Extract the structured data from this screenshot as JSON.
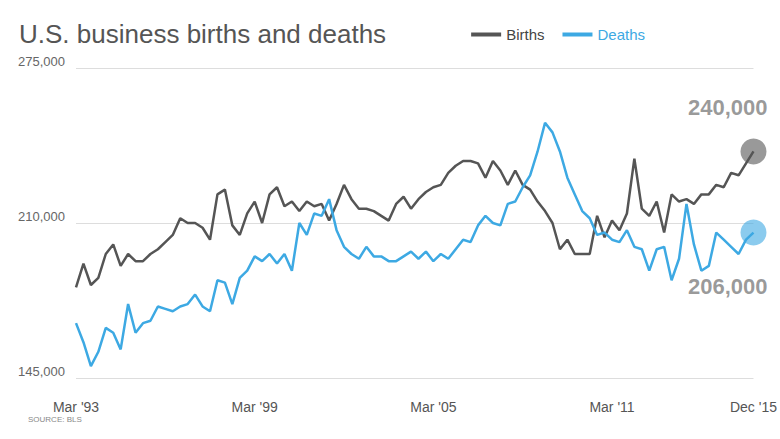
{
  "chart_data": {
    "type": "line",
    "title": "U.S. business births and deaths",
    "source": "SOURCE: BLS",
    "categories": [
      "Mar '93",
      null,
      null,
      null,
      null,
      null,
      null,
      null,
      null,
      null,
      null,
      null,
      null,
      null,
      null,
      null,
      null,
      null,
      null,
      null,
      null,
      null,
      null,
      null,
      "Mar '99",
      null,
      null,
      null,
      null,
      null,
      null,
      null,
      null,
      null,
      null,
      null,
      null,
      null,
      null,
      null,
      null,
      null,
      null,
      null,
      null,
      null,
      null,
      null,
      "Mar '05",
      null,
      null,
      null,
      null,
      null,
      null,
      null,
      null,
      null,
      null,
      null,
      null,
      null,
      null,
      null,
      null,
      null,
      null,
      null,
      null,
      null,
      null,
      null,
      "Mar '11",
      null,
      null,
      null,
      null,
      null,
      null,
      null,
      null,
      null,
      null,
      null,
      null,
      null,
      null,
      null,
      null,
      null,
      null,
      "Dec '15"
    ],
    "series": [
      {
        "name": "Births",
        "color": "#555555",
        "values": [
          183000,
          193000,
          184000,
          187000,
          197000,
          201000,
          192000,
          197000,
          194000,
          194000,
          197000,
          199000,
          202000,
          205000,
          212000,
          210000,
          210000,
          208000,
          203000,
          222000,
          224000,
          209000,
          205000,
          214000,
          219000,
          210000,
          222000,
          225000,
          217000,
          219000,
          215000,
          219000,
          217000,
          218000,
          211000,
          218000,
          226000,
          220000,
          216000,
          216000,
          215000,
          213000,
          211000,
          218000,
          221000,
          216000,
          220000,
          223000,
          225000,
          226000,
          231000,
          234000,
          236000,
          236000,
          235000,
          229000,
          236000,
          232000,
          226000,
          232000,
          226000,
          224000,
          219000,
          215000,
          210000,
          199000,
          203000,
          197000,
          197000,
          197000,
          213000,
          204000,
          211000,
          207000,
          214000,
          237000,
          216000,
          213000,
          219000,
          206000,
          222000,
          219000,
          220000,
          218000,
          222000,
          222000,
          226000,
          225000,
          231000,
          230000,
          235000,
          240000
        ]
      },
      {
        "name": "Deaths",
        "color": "#3da9e3",
        "values": [
          168000,
          160000,
          150000,
          156000,
          166000,
          164000,
          157000,
          176000,
          164000,
          168000,
          169000,
          175000,
          174000,
          173000,
          175000,
          176000,
          180000,
          175000,
          173000,
          186000,
          185000,
          176000,
          187000,
          190000,
          196000,
          194000,
          197000,
          193000,
          197000,
          190000,
          210000,
          205000,
          214000,
          213000,
          220000,
          207000,
          200000,
          197000,
          195000,
          200000,
          196000,
          196000,
          194000,
          194000,
          196000,
          198000,
          195000,
          198000,
          194000,
          197000,
          195000,
          199000,
          203000,
          202000,
          209000,
          213000,
          210000,
          209000,
          218000,
          219000,
          225000,
          230000,
          240000,
          252000,
          248000,
          240000,
          229000,
          222000,
          215000,
          212000,
          205000,
          206000,
          203000,
          202000,
          207000,
          200000,
          199000,
          190000,
          199000,
          200000,
          186000,
          195000,
          218000,
          201000,
          190000,
          192000,
          206000,
          203000,
          200000,
          197000,
          203000,
          206000
        ]
      }
    ],
    "ylim": [
      145000,
      275000
    ],
    "yticks": [
      {
        "value": 145000,
        "label": "145,000"
      },
      {
        "value": 210000,
        "label": "210,000"
      },
      {
        "value": 275000,
        "label": "275,000"
      }
    ],
    "grid": true,
    "legend": "top-right",
    "annotations": [
      {
        "series": "Births",
        "x": "Dec '15",
        "value": 240000,
        "label": "240,000"
      },
      {
        "series": "Deaths",
        "x": "Dec '15",
        "value": 206000,
        "label": "206,000"
      }
    ]
  }
}
